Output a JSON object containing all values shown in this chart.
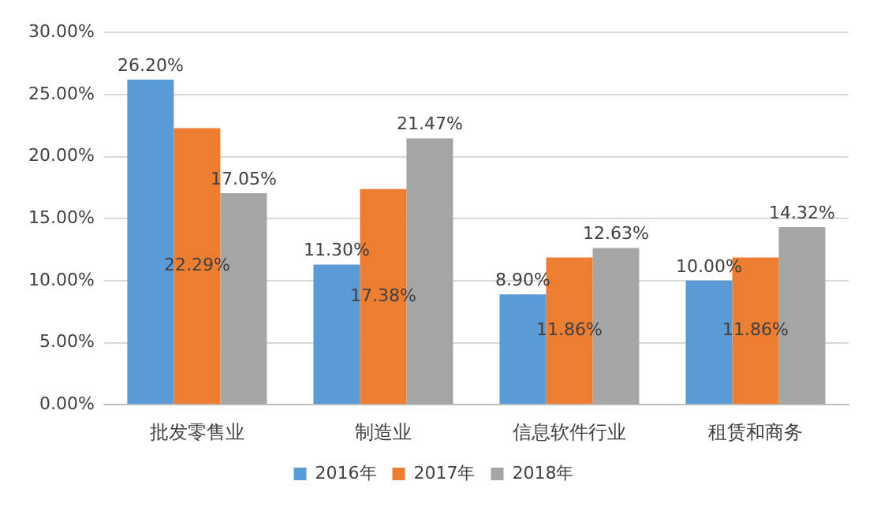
{
  "chart_data": {
    "type": "bar",
    "categories": [
      "批发零售业",
      "制造业",
      "信息软件行业",
      "租赁和商务"
    ],
    "series": [
      {
        "name": "2016年",
        "color": "#5b9bd5",
        "values": [
          26.2,
          11.3,
          8.9,
          10.0
        ],
        "value_labels": [
          "26.20%",
          "11.30%",
          "8.90%",
          "10.00%"
        ]
      },
      {
        "name": "2017年",
        "color": "#ed7d31",
        "values": [
          22.29,
          17.38,
          11.86,
          11.86
        ],
        "value_labels": [
          "22.29%",
          "17.38%",
          "11.86%",
          "11.86%"
        ]
      },
      {
        "name": "2018年",
        "color": "#a5a5a5",
        "values": [
          17.05,
          21.47,
          12.63,
          14.32
        ],
        "value_labels": [
          "17.05%",
          "21.47%",
          "12.63%",
          "14.32%"
        ]
      }
    ],
    "ylim": [
      0,
      30
    ],
    "yticks": [
      {
        "value": 0,
        "label": "0.00%"
      },
      {
        "value": 5,
        "label": "5.00%"
      },
      {
        "value": 10,
        "label": "10.00%"
      },
      {
        "value": 15,
        "label": "15.00%"
      },
      {
        "value": 20,
        "label": "20.00%"
      },
      {
        "value": 25,
        "label": "25.00%"
      },
      {
        "value": 30,
        "label": "30.00%"
      }
    ],
    "grid": "y",
    "legend": "bottom"
  }
}
